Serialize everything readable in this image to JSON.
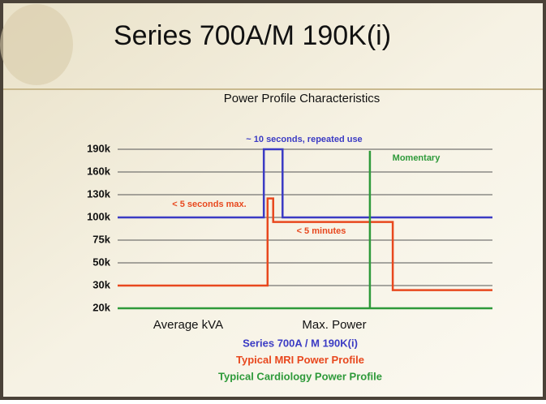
{
  "chart_data": {
    "type": "step-line",
    "title": "Series 700A/M 190K(i)",
    "subtitle": "Power Profile Characteristics",
    "xlim": [
      0,
      100
    ],
    "yticks": [
      {
        "value": 20000,
        "label": "20k"
      },
      {
        "value": 30000,
        "label": "30k"
      },
      {
        "value": 50000,
        "label": "50k"
      },
      {
        "value": 75000,
        "label": "75k"
      },
      {
        "value": 100000,
        "label": "100k"
      },
      {
        "value": 130000,
        "label": "130k"
      },
      {
        "value": 160000,
        "label": "160k"
      },
      {
        "value": 190000,
        "label": "190k"
      }
    ],
    "grid": true,
    "series": [
      {
        "name": "Series 700A / M  190K(i)",
        "color": "#3b3bc4",
        "x": [
          0,
          39,
          39,
          44,
          44,
          100
        ],
        "values": [
          100000,
          100000,
          190000,
          190000,
          100000,
          100000
        ]
      },
      {
        "name": "Typical MRI Power Profile",
        "color": "#e8481e",
        "x": [
          0,
          40,
          40,
          41.5,
          41.5,
          73.4,
          73.4,
          100
        ],
        "values": [
          30000,
          30000,
          125000,
          125000,
          95000,
          95000,
          28000,
          28000
        ]
      },
      {
        "name": "Typical Cardiology Power Profile",
        "color": "#2e9a3a",
        "x": [
          0,
          67.3,
          67.3,
          67.3,
          100
        ],
        "values": [
          20000,
          20000,
          188000,
          20000,
          20000
        ]
      }
    ],
    "annotations": [
      "~ 10 seconds, repeated use",
      "Momentary",
      "< 5 seconds max.",
      "< 5 minutes"
    ],
    "axis_labels": [
      "Average kVA",
      "Max. Power"
    ]
  }
}
